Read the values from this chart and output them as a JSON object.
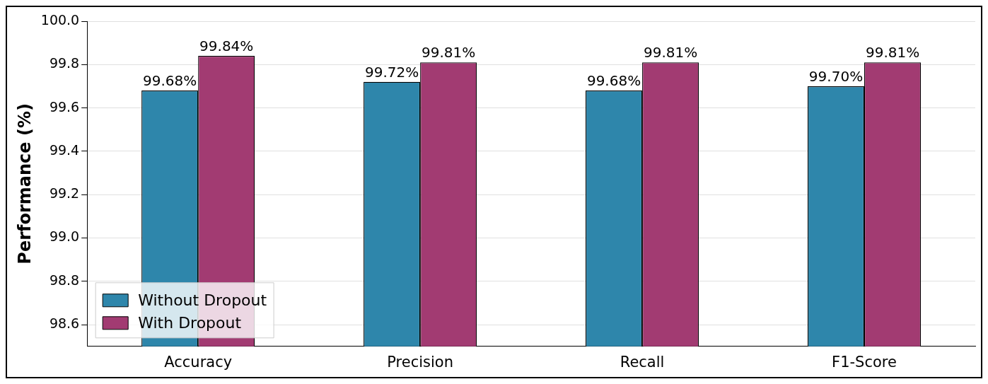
{
  "chart_data": {
    "type": "bar",
    "ylabel": "Performance (%)",
    "categories": [
      "Accuracy",
      "Precision",
      "Recall",
      "F1-Score"
    ],
    "series": [
      {
        "name": "Without Dropout",
        "color": "#2e86ab",
        "values": [
          99.68,
          99.72,
          99.68,
          99.7
        ],
        "value_labels": [
          "99.68%",
          "99.72%",
          "99.68%",
          "99.70%"
        ]
      },
      {
        "name": "With Dropout",
        "color": "#a23b72",
        "values": [
          99.84,
          99.81,
          99.81,
          99.81
        ],
        "value_labels": [
          "99.84%",
          "99.81%",
          "99.81%",
          "99.81%"
        ]
      }
    ],
    "ylim": [
      98.5,
      100
    ],
    "yticks": [
      98.6,
      98.8,
      {
        "value": 99,
        "label": "99.0"
      },
      99.2,
      99.4,
      99.6,
      99.8,
      {
        "value": 100,
        "label": "100.0"
      }
    ],
    "grid": "y",
    "legend": "bottom left"
  }
}
